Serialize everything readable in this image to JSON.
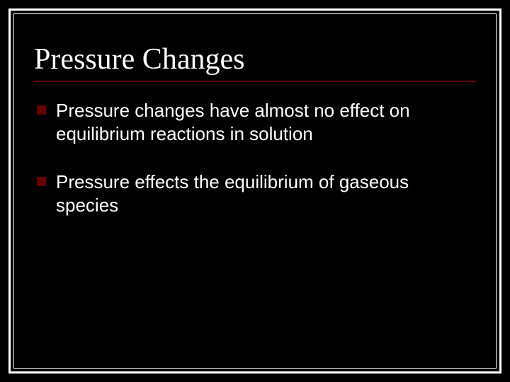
{
  "slide": {
    "title": "Pressure Changes",
    "title_font": "Times New Roman",
    "title_fontsize": 42,
    "title_color": "#ffffff",
    "rule_color": "#6b0000",
    "background_color": "#000000",
    "frame_outer_color": "#ffffff",
    "frame_inner_color": "#ffffff",
    "bullet_marker_color": "#660000",
    "bullet_text_color": "#ffffff",
    "bullet_fontsize": 26,
    "bullets": [
      {
        "text": "Pressure changes have almost no effect on equilibrium reactions in solution"
      },
      {
        "text": "Pressure effects the equilibrium of gaseous species"
      }
    ]
  }
}
